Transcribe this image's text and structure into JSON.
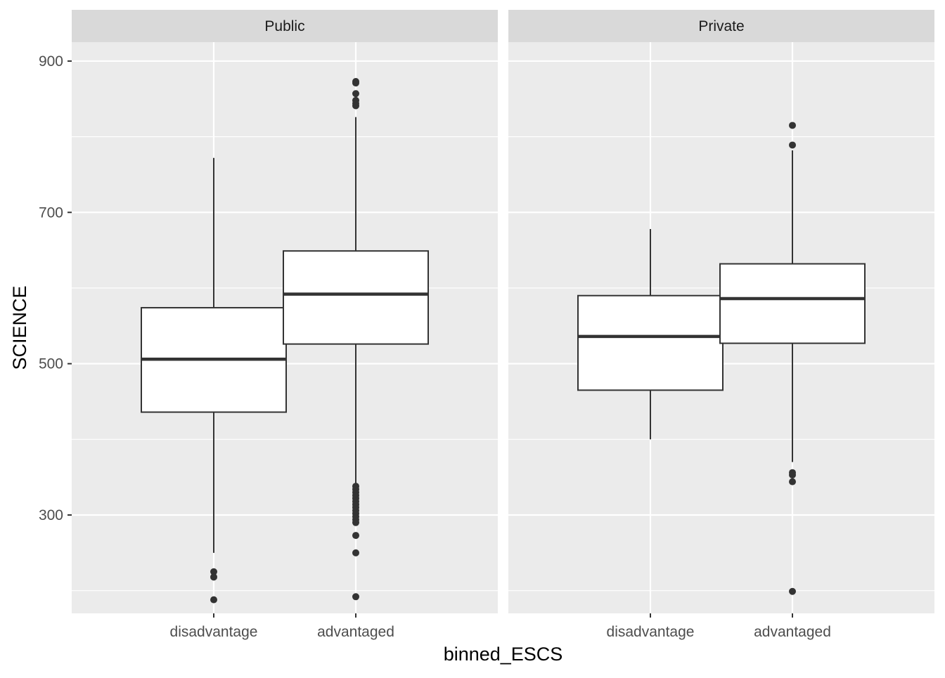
{
  "chart_data": {
    "type": "box",
    "xlabel": "binned_ESCS",
    "ylabel": "SCIENCE",
    "ylim": [
      170,
      925
    ],
    "yticks": [
      300,
      500,
      700,
      900
    ],
    "categories": [
      "disadvantage",
      "advantaged"
    ],
    "facets": [
      {
        "label": "Public",
        "boxes": [
          {
            "category": "disadvantage",
            "min": 250,
            "q1": 436,
            "median": 506,
            "q3": 574,
            "max": 772,
            "outliers": [
              225,
              218,
              188
            ]
          },
          {
            "category": "advantaged",
            "min": 340,
            "q1": 526,
            "median": 592,
            "q3": 649,
            "max": 826,
            "outliers": [
              873,
              871,
              857,
              848,
              844,
              841,
              338,
              334,
              330,
              326,
              322,
              318,
              314,
              310,
              306,
              302,
              298,
              294,
              290,
              273,
              250,
              192
            ]
          }
        ]
      },
      {
        "label": "Private",
        "boxes": [
          {
            "category": "disadvantage",
            "min": 400,
            "q1": 465,
            "median": 536,
            "q3": 590,
            "max": 678,
            "outliers": []
          },
          {
            "category": "advantaged",
            "min": 370,
            "q1": 527,
            "median": 586,
            "q3": 632,
            "max": 782,
            "outliers": [
              815,
              789,
              356,
              353,
              344,
              199
            ]
          }
        ]
      }
    ],
    "colors": {
      "panel_bg": "#ebebeb",
      "strip_bg": "#d9d9d9",
      "grid": "#ffffff",
      "box_fill": "#ffffff",
      "box_line": "#333333"
    }
  }
}
